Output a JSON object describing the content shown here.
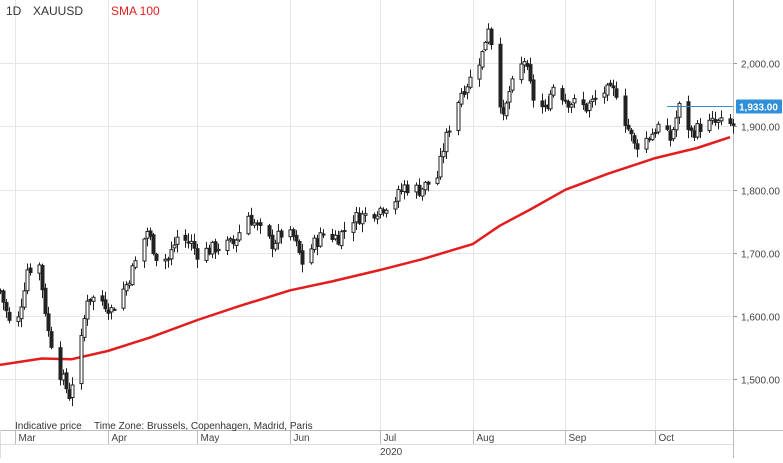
{
  "header": {
    "interval": "1D",
    "symbol": "XAUUSD",
    "indicator": "SMA 100"
  },
  "footer": {
    "price_note": "Indicative price",
    "timezone": "Time Zone: Brussels, Copenhagen, Madrid, Paris",
    "year": "2020"
  },
  "colors": {
    "candle": "#222222",
    "sma": "#e31d1d",
    "grid": "#e6e6e6",
    "last_price_badge": "#2f8fd8",
    "last_price_line": "#2f8fd8",
    "axis_text": "#444444"
  },
  "chart_data": {
    "type": "candlestick",
    "instrument": "XAUUSD",
    "interval": "1D",
    "last_price": "1,933.00",
    "last_price_value": 1933,
    "ylim": [
      1420,
      2100
    ],
    "yticks": [
      {
        "value": 1500,
        "label": "1,500.00"
      },
      {
        "value": 1600,
        "label": "1,600.00"
      },
      {
        "value": 1700,
        "label": "1,700.00"
      },
      {
        "value": 1800,
        "label": "1,800.00"
      },
      {
        "value": 1900,
        "label": "1,900.00"
      },
      {
        "value": 2000,
        "label": "2,000.00"
      }
    ],
    "xlim": [
      "2020-02-25",
      "2020-10-27"
    ],
    "xticks": [
      {
        "date": "2020-03-01",
        "label": "Mar"
      },
      {
        "date": "2020-04-01",
        "label": "Apr"
      },
      {
        "date": "2020-05-01",
        "label": "May"
      },
      {
        "date": "2020-06-01",
        "label": "Jun"
      },
      {
        "date": "2020-07-01",
        "label": "Jul"
      },
      {
        "date": "2020-08-01",
        "label": "Aug"
      },
      {
        "date": "2020-09-01",
        "label": "Sep"
      },
      {
        "date": "2020-10-01",
        "label": "Oct"
      }
    ],
    "close_path": [
      [
        "2020-02-25",
        1640
      ],
      [
        "2020-02-28",
        1590
      ],
      [
        "2020-03-02",
        1595
      ],
      [
        "2020-03-05",
        1675
      ],
      [
        "2020-03-09",
        1680
      ],
      [
        "2020-03-12",
        1575
      ],
      [
        "2020-03-16",
        1510
      ],
      [
        "2020-03-19",
        1475
      ],
      [
        "2020-03-23",
        1560
      ],
      [
        "2020-03-25",
        1630
      ],
      [
        "2020-03-30",
        1625
      ],
      [
        "2020-04-02",
        1610
      ],
      [
        "2020-04-07",
        1650
      ],
      [
        "2020-04-10",
        1685
      ],
      [
        "2020-04-14",
        1735
      ],
      [
        "2020-04-17",
        1695
      ],
      [
        "2020-04-21",
        1690
      ],
      [
        "2020-04-24",
        1725
      ],
      [
        "2020-04-29",
        1715
      ],
      [
        "2020-05-01",
        1700
      ],
      [
        "2020-05-05",
        1705
      ],
      [
        "2020-05-08",
        1710
      ],
      [
        "2020-05-13",
        1715
      ],
      [
        "2020-05-18",
        1760
      ],
      [
        "2020-05-21",
        1740
      ],
      [
        "2020-05-26",
        1715
      ],
      [
        "2020-05-29",
        1730
      ],
      [
        "2020-06-02",
        1725
      ],
      [
        "2020-06-05",
        1685
      ],
      [
        "2020-06-09",
        1715
      ],
      [
        "2020-06-12",
        1730
      ],
      [
        "2020-06-17",
        1725
      ],
      [
        "2020-06-22",
        1755
      ],
      [
        "2020-06-26",
        1760
      ],
      [
        "2020-07-01",
        1770
      ],
      [
        "2020-07-06",
        1785
      ],
      [
        "2020-07-09",
        1805
      ],
      [
        "2020-07-14",
        1800
      ],
      [
        "2020-07-20",
        1820
      ],
      [
        "2020-07-22",
        1865
      ],
      [
        "2020-07-24",
        1900
      ],
      [
        "2020-07-28",
        1955
      ],
      [
        "2020-07-31",
        1975
      ],
      [
        "2020-08-04",
        2015
      ],
      [
        "2020-08-06",
        2060
      ],
      [
        "2020-08-07",
        2035
      ],
      [
        "2020-08-11",
        1910
      ],
      [
        "2020-08-13",
        1955
      ],
      [
        "2020-08-18",
        2005
      ],
      [
        "2020-08-21",
        1945
      ],
      [
        "2020-08-25",
        1925
      ],
      [
        "2020-08-28",
        1965
      ],
      [
        "2020-09-02",
        1940
      ],
      [
        "2020-09-08",
        1930
      ],
      [
        "2020-09-14",
        1955
      ],
      [
        "2020-09-18",
        1955
      ],
      [
        "2020-09-21",
        1910
      ],
      [
        "2020-09-24",
        1870
      ],
      [
        "2020-09-28",
        1880
      ],
      [
        "2020-10-02",
        1900
      ],
      [
        "2020-10-06",
        1880
      ],
      [
        "2020-10-09",
        1930
      ],
      [
        "2020-10-13",
        1890
      ],
      [
        "2020-10-16",
        1900
      ],
      [
        "2020-10-20",
        1905
      ],
      [
        "2020-10-22",
        1905
      ],
      [
        "2020-10-26",
        1902
      ]
    ],
    "sma100": [
      [
        "2020-02-25",
        1523
      ],
      [
        "2020-03-10",
        1533
      ],
      [
        "2020-03-20",
        1532
      ],
      [
        "2020-04-01",
        1545
      ],
      [
        "2020-04-15",
        1566
      ],
      [
        "2020-05-01",
        1594
      ],
      [
        "2020-05-15",
        1616
      ],
      [
        "2020-06-01",
        1641
      ],
      [
        "2020-06-15",
        1655
      ],
      [
        "2020-07-01",
        1673
      ],
      [
        "2020-07-15",
        1690
      ],
      [
        "2020-08-01",
        1714
      ],
      [
        "2020-08-10",
        1743
      ],
      [
        "2020-08-20",
        1768
      ],
      [
        "2020-09-01",
        1800
      ],
      [
        "2020-09-15",
        1825
      ],
      [
        "2020-10-01",
        1850
      ],
      [
        "2020-10-15",
        1866
      ],
      [
        "2020-10-26",
        1883
      ]
    ]
  }
}
